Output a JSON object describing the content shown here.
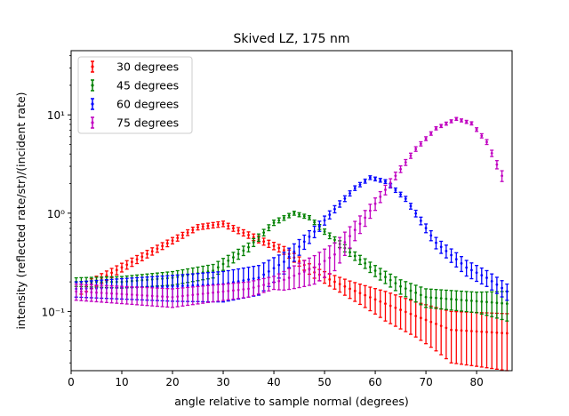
{
  "chart_data": {
    "type": "scatter",
    "title": "Skived LZ, 175 nm",
    "xlabel": "angle relative to sample normal (degrees)",
    "ylabel": "intensity (reflected rate/str)/(incident rate)",
    "xlim": [
      0,
      87
    ],
    "ylim": [
      0.025,
      45
    ],
    "yscale": "log",
    "x_ticks": [
      0,
      10,
      20,
      30,
      40,
      50,
      60,
      70,
      80
    ],
    "y_ticks": [
      {
        "value": 0.1,
        "label": "10⁻¹"
      },
      {
        "value": 1,
        "label": "10⁰"
      },
      {
        "value": 10,
        "label": "10¹"
      }
    ],
    "grid": false,
    "legend_position": "top-left",
    "series": [
      {
        "name": "30 degrees",
        "color": "#ff0000",
        "points": [
          [
            2,
            0.17
          ],
          [
            25,
            0.72
          ],
          [
            30,
            0.78
          ],
          [
            35,
            0.6
          ],
          [
            42,
            0.42
          ],
          [
            48,
            0.25
          ],
          [
            55,
            0.17
          ],
          [
            62,
            0.12
          ],
          [
            68,
            0.09
          ],
          [
            75,
            0.065
          ],
          [
            86,
            0.06
          ]
        ],
        "errors": [
          [
            2,
            0.02
          ],
          [
            30,
            0.05
          ],
          [
            50,
            0.03
          ],
          [
            62,
            0.04
          ],
          [
            68,
            0.035
          ],
          [
            75,
            0.035
          ],
          [
            86,
            0.035
          ]
        ]
      },
      {
        "name": "45 degrees",
        "color": "#008000",
        "points": [
          [
            1,
            0.2
          ],
          [
            10,
            0.2
          ],
          [
            20,
            0.22
          ],
          [
            28,
            0.26
          ],
          [
            35,
            0.45
          ],
          [
            40,
            0.8
          ],
          [
            44,
            1.0
          ],
          [
            47,
            0.9
          ],
          [
            50,
            0.65
          ],
          [
            55,
            0.4
          ],
          [
            60,
            0.26
          ],
          [
            65,
            0.18
          ],
          [
            70,
            0.14
          ],
          [
            86,
            0.12
          ]
        ],
        "errors": [
          [
            1,
            0.02
          ],
          [
            40,
            0.05
          ],
          [
            50,
            0.04
          ],
          [
            65,
            0.03
          ],
          [
            80,
            0.03
          ],
          [
            86,
            0.04
          ]
        ]
      },
      {
        "name": "60 degrees",
        "color": "#0000ff",
        "points": [
          [
            1,
            0.17
          ],
          [
            20,
            0.18
          ],
          [
            30,
            0.19
          ],
          [
            37,
            0.22
          ],
          [
            42,
            0.32
          ],
          [
            48,
            0.65
          ],
          [
            52,
            1.1
          ],
          [
            56,
            1.8
          ],
          [
            59,
            2.3
          ],
          [
            62,
            2.1
          ],
          [
            66,
            1.4
          ],
          [
            72,
            0.5
          ],
          [
            78,
            0.28
          ],
          [
            82,
            0.22
          ],
          [
            86,
            0.16
          ]
        ],
        "errors": [
          [
            1,
            0.03
          ],
          [
            59,
            0.1
          ],
          [
            86,
            0.03
          ]
        ]
      },
      {
        "name": "75 degrees",
        "color": "#c000c0",
        "points": [
          [
            1,
            0.16
          ],
          [
            20,
            0.14
          ],
          [
            35,
            0.17
          ],
          [
            42,
            0.21
          ],
          [
            48,
            0.28
          ],
          [
            52,
            0.38
          ],
          [
            58,
            0.9
          ],
          [
            64,
            2.4
          ],
          [
            68,
            4.5
          ],
          [
            72,
            7.3
          ],
          [
            76,
            9.1
          ],
          [
            79,
            8.2
          ],
          [
            82,
            5.3
          ],
          [
            85,
            2.4
          ]
        ],
        "errors": [
          [
            1,
            0.03
          ],
          [
            40,
            0.03
          ],
          [
            76,
            0.3
          ]
        ]
      }
    ]
  }
}
